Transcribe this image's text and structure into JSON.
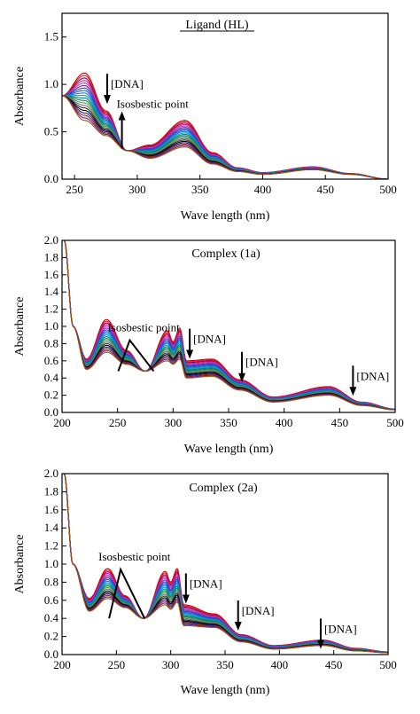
{
  "chart_data": [
    {
      "type": "line",
      "title": "Ligand (HL)",
      "xlabel": "Wave length (nm)",
      "ylabel": "Absorbance",
      "xlim": [
        240,
        500
      ],
      "ylim": [
        0,
        1.75
      ],
      "xticks": [
        "250",
        "300",
        "350",
        "400",
        "450",
        "500"
      ],
      "xtick_values": [
        250,
        300,
        350,
        400,
        450,
        500
      ],
      "yticks": [
        "0.0",
        "0.5",
        "1.0",
        "1.5"
      ],
      "ytick_values": [
        0,
        0.5,
        1.0,
        1.5
      ],
      "series_count": 20,
      "series": [
        {
          "name": "",
          "x": [
            240,
            258,
            275,
            292,
            310,
            338,
            360,
            380,
            400,
            440,
            470,
            500
          ],
          "values": [
            0.88,
            1.12,
            0.72,
            0.3,
            0.36,
            0.62,
            0.28,
            0.12,
            0.07,
            0.13,
            0.06,
            0.0
          ]
        },
        {
          "name": "",
          "x": [
            240,
            258,
            275,
            292,
            310,
            338,
            360,
            380,
            400,
            440,
            470,
            500
          ],
          "values": [
            0.88,
            0.62,
            0.46,
            0.3,
            0.22,
            0.34,
            0.16,
            0.08,
            0.05,
            0.1,
            0.05,
            0.0
          ]
        }
      ],
      "annotations": [
        {
          "text": "[DNA]",
          "x": 276,
          "y": 1.0,
          "arrow": "down"
        },
        {
          "text": "Isosbestic point",
          "x": 292,
          "y": 0.36,
          "arrow": "up"
        }
      ]
    },
    {
      "type": "line",
      "title": "Complex (1a)",
      "xlabel": "Wave length (nm)",
      "ylabel": "Absorbance",
      "xlim": [
        200,
        500
      ],
      "ylim": [
        0,
        2.0
      ],
      "xticks": [
        "200",
        "250",
        "300",
        "350",
        "400",
        "450",
        "500"
      ],
      "xtick_values": [
        200,
        250,
        300,
        350,
        400,
        450,
        500
      ],
      "yticks": [
        "0.0",
        "0.2",
        "0.4",
        "0.6",
        "0.8",
        "1.0",
        "1.2",
        "1.4",
        "1.6",
        "1.8",
        "2.0"
      ],
      "ytick_values": [
        0,
        0.2,
        0.4,
        0.6,
        0.8,
        1.0,
        1.2,
        1.4,
        1.6,
        1.8,
        2.0
      ],
      "series_count": 20,
      "series": [
        {
          "name": "",
          "x": [
            202,
            210,
            222,
            240,
            258,
            275,
            295,
            300,
            306,
            312,
            335,
            360,
            390,
            440,
            470,
            500
          ],
          "values": [
            2.0,
            1.0,
            0.62,
            1.08,
            0.72,
            0.48,
            0.95,
            0.82,
            0.98,
            0.6,
            0.62,
            0.38,
            0.18,
            0.3,
            0.12,
            0.04
          ]
        },
        {
          "name": "",
          "x": [
            202,
            210,
            222,
            240,
            258,
            275,
            295,
            300,
            306,
            312,
            335,
            360,
            390,
            440,
            470,
            500
          ],
          "values": [
            2.0,
            1.0,
            0.5,
            0.7,
            0.56,
            0.48,
            0.6,
            0.56,
            0.62,
            0.4,
            0.42,
            0.26,
            0.12,
            0.2,
            0.08,
            0.03
          ]
        }
      ],
      "annotations": [
        {
          "text": "Isosbestic point",
          "x": 265,
          "y": 0.88
        },
        {
          "text": "[DNA]",
          "x": 315,
          "y": 0.85,
          "arrow": "down"
        },
        {
          "text": "[DNA]",
          "x": 362,
          "y": 0.58,
          "arrow": "down"
        },
        {
          "text": "[DNA]",
          "x": 462,
          "y": 0.42,
          "arrow": "down"
        }
      ]
    },
    {
      "type": "line",
      "title": "Complex (2a)",
      "xlabel": "Wave length (nm)",
      "ylabel": "Absorbance",
      "xlim": [
        200,
        500
      ],
      "ylim": [
        0,
        2.0
      ],
      "xticks": [
        "200",
        "250",
        "300",
        "350",
        "400",
        "450",
        "500"
      ],
      "xtick_values": [
        200,
        250,
        300,
        350,
        400,
        450,
        500
      ],
      "yticks": [
        "0.0",
        "0.2",
        "0.4",
        "0.6",
        "0.8",
        "1.0",
        "1.2",
        "1.4",
        "1.6",
        "1.8",
        "2.0"
      ],
      "ytick_values": [
        0,
        0.2,
        0.4,
        0.6,
        0.8,
        1.0,
        1.2,
        1.4,
        1.6,
        1.8,
        2.0
      ],
      "series_count": 20,
      "series": [
        {
          "name": "",
          "x": [
            202,
            210,
            225,
            242,
            258,
            275,
            295,
            300,
            306,
            312,
            340,
            365,
            395,
            440,
            470,
            500
          ],
          "values": [
            2.0,
            1.0,
            0.62,
            0.95,
            0.65,
            0.4,
            0.92,
            0.8,
            0.95,
            0.55,
            0.45,
            0.22,
            0.1,
            0.16,
            0.07,
            0.03
          ]
        },
        {
          "name": "",
          "x": [
            202,
            210,
            225,
            242,
            258,
            275,
            295,
            300,
            306,
            312,
            340,
            365,
            395,
            440,
            470,
            500
          ],
          "values": [
            2.0,
            1.0,
            0.48,
            0.62,
            0.52,
            0.4,
            0.55,
            0.5,
            0.58,
            0.32,
            0.3,
            0.14,
            0.06,
            0.1,
            0.04,
            0.02
          ]
        }
      ],
      "annotations": [
        {
          "text": "Isosbestic point",
          "x": 258,
          "y": 0.98
        },
        {
          "text": "[DNA]",
          "x": 314,
          "y": 0.78,
          "arrow": "down"
        },
        {
          "text": "[DNA]",
          "x": 362,
          "y": 0.48,
          "arrow": "down"
        },
        {
          "text": "[DNA]",
          "x": 438,
          "y": 0.28,
          "arrow": "down"
        }
      ]
    }
  ]
}
